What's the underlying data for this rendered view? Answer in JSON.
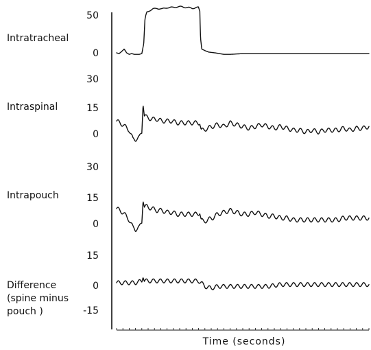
{
  "chart_data": {
    "type": "line",
    "xlabel": "Time (seconds)",
    "panels": [
      {
        "name": "Intratracheal",
        "ticks": [
          "50",
          "0"
        ],
        "tick_values": [
          50,
          0
        ],
        "ylim": [
          -5,
          62
        ],
        "x": [
          0,
          0.2,
          0.35,
          0.6,
          0.8,
          1.0,
          1.2,
          1.4,
          1.6,
          1.8,
          2.0,
          2.05,
          2.15,
          2.25,
          2.4,
          2.6,
          2.9,
          3.2,
          3.6,
          4.0,
          4.4,
          4.8,
          5.2,
          5.6,
          6.0,
          6.3,
          6.5,
          6.6,
          6.65,
          6.75,
          7.0,
          7.3,
          7.8,
          8.5,
          9.0,
          10.0,
          11.0,
          12.0,
          13.0,
          14.0,
          15.0,
          16.0,
          17.0,
          18.0,
          19.0,
          20.0
        ],
        "y": [
          0,
          -1,
          1,
          5,
          0,
          -2,
          -1,
          -2,
          -2,
          -2,
          -1,
          3,
          12,
          45,
          54,
          56,
          58,
          59,
          58,
          60,
          60,
          61,
          61,
          60,
          59,
          60,
          60,
          55,
          20,
          5,
          3,
          1,
          0,
          -2,
          -2,
          -1,
          -1,
          -1,
          -1,
          -1,
          -1,
          -1,
          -1,
          -1,
          -1,
          -1
        ]
      },
      {
        "name": "Intraspinal",
        "ticks": [
          "30",
          "15",
          "0"
        ],
        "tick_values": [
          30,
          15,
          0
        ],
        "ylim": [
          -6,
          32
        ],
        "x": [
          0,
          0.5,
          1.0,
          1.3,
          1.5,
          1.8,
          2.0,
          2.1,
          2.2,
          2.4,
          2.8,
          3.2,
          3.6,
          4.0,
          4.4,
          4.8,
          5.2,
          5.6,
          6.0,
          6.4,
          6.6,
          6.7,
          6.9,
          7.2,
          7.6,
          8.0,
          8.5,
          9.0,
          9.5,
          10.0,
          10.5,
          11.0,
          11.5,
          12.0,
          12.5,
          13.0,
          13.5,
          14.0,
          14.5,
          15.0,
          15.5,
          16.0,
          16.5,
          17.0,
          17.5,
          18.0,
          18.5,
          19.0,
          19.5,
          20.0
        ],
        "y": [
          7,
          5,
          2,
          -3,
          -3,
          -2,
          1,
          17,
          10,
          9,
          8,
          8,
          7,
          7,
          7,
          6,
          6,
          6,
          6,
          6,
          6,
          2,
          2,
          3,
          4,
          5,
          4,
          6,
          5,
          4,
          3,
          4,
          5,
          4,
          3,
          4,
          3,
          2,
          2,
          1,
          2,
          1,
          2,
          2,
          2,
          3,
          2,
          3,
          3,
          4
        ]
      },
      {
        "name": "Intrapouch",
        "ticks": [
          "30",
          "15",
          "0"
        ],
        "tick_values": [
          30,
          15,
          0
        ],
        "ylim": [
          -6,
          32
        ],
        "x": [
          0,
          0.5,
          1.0,
          1.3,
          1.5,
          1.8,
          2.0,
          2.1,
          2.2,
          2.4,
          2.8,
          3.2,
          3.6,
          4.0,
          4.4,
          4.8,
          5.2,
          5.6,
          6.0,
          6.4,
          6.6,
          6.7,
          6.9,
          7.2,
          7.6,
          8.0,
          8.5,
          9.0,
          9.5,
          10.0,
          10.5,
          11.0,
          11.5,
          12.0,
          12.5,
          13.0,
          13.5,
          14.0,
          14.5,
          15.0,
          15.5,
          16.0,
          16.5,
          17.0,
          17.5,
          18.0,
          18.5,
          19.0,
          19.5,
          20.0
        ],
        "y": [
          8,
          6,
          2,
          -2,
          -3,
          -2,
          1,
          13,
          9,
          9,
          8,
          7,
          7,
          6,
          6,
          5,
          5,
          5,
          5,
          5,
          6,
          2,
          1,
          2,
          3,
          5,
          6,
          7,
          6,
          5,
          5,
          6,
          5,
          4,
          4,
          3,
          3,
          2,
          2,
          2,
          2,
          2,
          2,
          2,
          2,
          3,
          3,
          3,
          3,
          3
        ]
      },
      {
        "name": "Difference (spine minus pouch )",
        "label_lines": [
          "Difference",
          "(spine minus",
          "pouch )"
        ],
        "ticks": [
          "15",
          "0",
          "-15"
        ],
        "tick_values": [
          15,
          0,
          -15
        ],
        "ylim": [
          -18,
          18
        ],
        "x": [
          0,
          0.5,
          1.0,
          1.5,
          2.0,
          2.1,
          2.2,
          2.5,
          3.0,
          3.5,
          4.0,
          4.5,
          5.0,
          5.5,
          6.0,
          6.5,
          6.7,
          7.0,
          7.5,
          8.0,
          9.0,
          10.0,
          11.0,
          12.0,
          13.0,
          14.0,
          15.0,
          16.0,
          17.0,
          18.0,
          19.0,
          20.0
        ],
        "y": [
          0,
          0,
          0,
          0,
          1,
          4,
          1,
          1,
          1,
          1,
          1,
          1,
          1,
          1,
          1,
          1,
          0,
          -2,
          -3,
          -2,
          -2,
          -2,
          -2,
          -2,
          -1,
          -1,
          -1,
          -1,
          -1,
          -1,
          -1,
          -1
        ]
      }
    ]
  }
}
